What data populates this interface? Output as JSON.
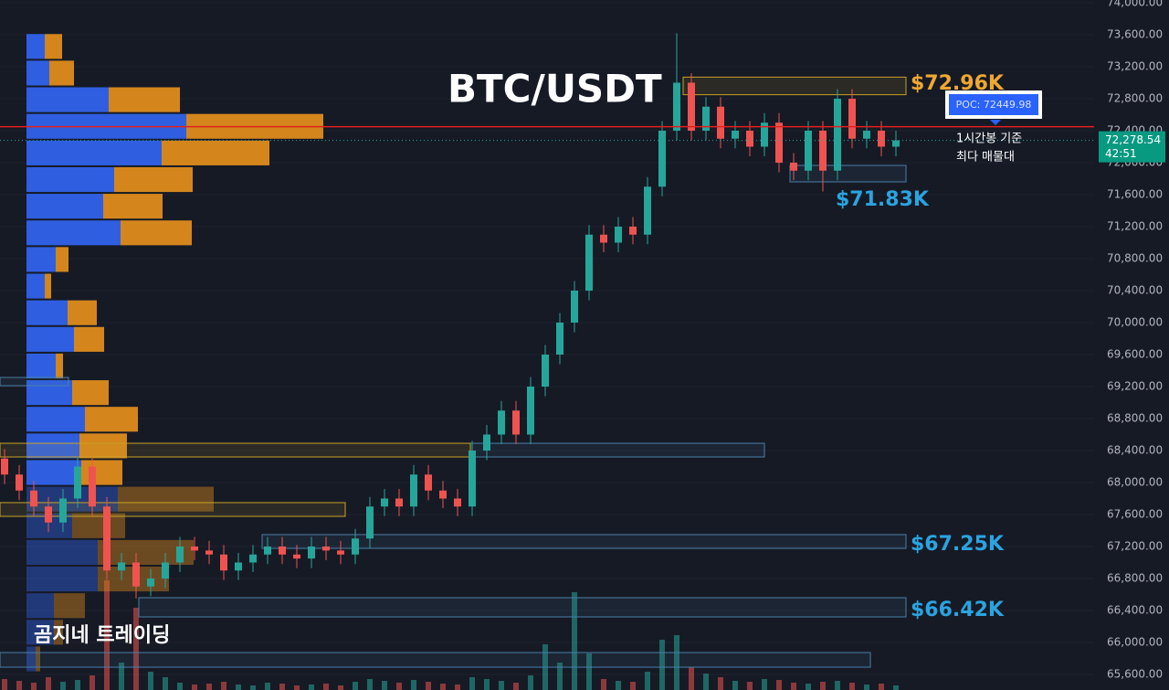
{
  "chart_data": {
    "type": "candlestick",
    "title": "BTC/USDT",
    "watermark": "곰지네 트레이딩",
    "note": [
      "1시간봉 기준",
      "최다 매물대"
    ],
    "timer": "42:51",
    "ylim": [
      65600,
      74000
    ],
    "yticks": [
      {
        "value": 74000,
        "label": "74,000.00"
      },
      {
        "value": 73600,
        "label": "73,600.00"
      },
      {
        "value": 73200,
        "label": "73,200.00"
      },
      {
        "value": 72800,
        "label": "72,800.00"
      },
      {
        "value": 72400,
        "label": "72,400.00"
      },
      {
        "value": 72000,
        "label": "72,000.00"
      },
      {
        "value": 71600,
        "label": "71,600.00"
      },
      {
        "value": 71200,
        "label": "71,200.00"
      },
      {
        "value": 70800,
        "label": "70,800.00"
      },
      {
        "value": 70400,
        "label": "70,400.00"
      },
      {
        "value": 70000,
        "label": "70,000.00"
      },
      {
        "value": 69600,
        "label": "69,600.00"
      },
      {
        "value": 69200,
        "label": "69,200.00"
      },
      {
        "value": 68800,
        "label": "68,800.00"
      },
      {
        "value": 68400,
        "label": "68,400.00"
      },
      {
        "value": 68000,
        "label": "68,000.00"
      },
      {
        "value": 67600,
        "label": "67,600.00"
      },
      {
        "value": 67200,
        "label": "67,200.00"
      },
      {
        "value": 66800,
        "label": "66,800.00"
      },
      {
        "value": 66400,
        "label": "66,400.00"
      },
      {
        "value": 66000,
        "label": "66,000.00"
      },
      {
        "value": 65600,
        "label": "65,600.00"
      }
    ],
    "grid": true,
    "up_color": "#26a69a",
    "down_color": "#ef5350",
    "open": [
      68300,
      68100,
      67900,
      67700,
      67500,
      67800,
      68200,
      67700,
      66900,
      67000,
      66700,
      66800,
      67000,
      67200,
      67150,
      67100,
      66900,
      67000,
      67100,
      67200,
      67100,
      67050,
      67200,
      67150,
      67100,
      67300,
      67700,
      67800,
      67700,
      68100,
      67900,
      67800,
      67700,
      68400,
      68600,
      68900,
      68600,
      69200,
      69600,
      70000,
      70400,
      71100,
      71000,
      71200,
      71100,
      71700,
      72400,
      73000,
      72400,
      72700,
      72300,
      72400,
      72200,
      72500,
      72000,
      71900,
      72400,
      71900,
      72800,
      72300,
      72400,
      72200
    ],
    "high": [
      68420,
      68220,
      68020,
      67820,
      67920,
      68320,
      68320,
      67820,
      67120,
      67120,
      66920,
      67120,
      67320,
      67320,
      67270,
      67220,
      67120,
      67220,
      67320,
      67320,
      67220,
      67320,
      67320,
      67270,
      67420,
      67820,
      67920,
      67920,
      68220,
      68220,
      68020,
      67920,
      68520,
      68720,
      69020,
      69020,
      69320,
      69720,
      70120,
      70520,
      71220,
      71220,
      71320,
      71320,
      71820,
      72520,
      73620,
      73120,
      72820,
      72820,
      72520,
      72520,
      72620,
      72620,
      72120,
      72520,
      72520,
      72920,
      72920,
      72520,
      72520,
      72400
    ],
    "low": [
      67980,
      67780,
      67580,
      67380,
      67380,
      67680,
      67580,
      66780,
      66780,
      66550,
      66580,
      66680,
      66880,
      67030,
      66980,
      66780,
      66780,
      66880,
      66980,
      66980,
      66930,
      66930,
      67030,
      66980,
      66980,
      67180,
      67580,
      67580,
      67580,
      67780,
      67680,
      67580,
      67580,
      68280,
      68480,
      68480,
      68480,
      69080,
      69480,
      69880,
      70280,
      70880,
      70880,
      70980,
      70980,
      71580,
      72280,
      72280,
      72280,
      72180,
      72180,
      72080,
      72080,
      71880,
      71780,
      71780,
      71640,
      71780,
      72180,
      72180,
      72080,
      72080
    ],
    "close": [
      68100,
      67900,
      67700,
      67500,
      67800,
      68200,
      67700,
      66900,
      67000,
      66700,
      66800,
      67000,
      67200,
      67150,
      67100,
      66900,
      67000,
      67100,
      67200,
      67100,
      67050,
      67200,
      67150,
      67100,
      67300,
      67700,
      67800,
      67700,
      68100,
      67900,
      67800,
      67700,
      68400,
      68600,
      68900,
      68600,
      69200,
      69600,
      70000,
      70400,
      71100,
      71000,
      71200,
      71100,
      71700,
      72400,
      73000,
      72400,
      72700,
      72300,
      72400,
      72200,
      72500,
      72000,
      71900,
      72400,
      71900,
      72800,
      72300,
      72400,
      72200,
      72278.54
    ],
    "volume": [
      12,
      10,
      8,
      14,
      9,
      11,
      16,
      120,
      30,
      90,
      20,
      14,
      8,
      6,
      7,
      9,
      6,
      5,
      8,
      7,
      5,
      6,
      7,
      5,
      9,
      12,
      10,
      8,
      11,
      9,
      7,
      6,
      14,
      12,
      10,
      8,
      16,
      50,
      30,
      107,
      40,
      12,
      10,
      9,
      20,
      55,
      60,
      25,
      18,
      14,
      10,
      9,
      12,
      11,
      8,
      7,
      9,
      10,
      8,
      6,
      7,
      5
    ],
    "poc": {
      "value": 72449.98,
      "label": "POC: 72449.98"
    },
    "last_price": {
      "value": 72278.54,
      "label": "72,278.54"
    },
    "profile": {
      "bins": [
        73620,
        73287,
        72954,
        72621,
        72288,
        71955,
        71622,
        71289,
        70956,
        70623,
        70290,
        69957,
        69624,
        69291,
        68958,
        68625,
        68292,
        67959,
        67626,
        67293,
        66960,
        66627,
        66294,
        65961,
        65628
      ],
      "buy": [
        20,
        25,
        90,
        175,
        148,
        96,
        84,
        103,
        32,
        20,
        45,
        52,
        32,
        50,
        64,
        58,
        60,
        100,
        50,
        78,
        78,
        30,
        30,
        10
      ],
      "sell": [
        19,
        27,
        78,
        150,
        118,
        86,
        65,
        78,
        14,
        7,
        32,
        33,
        8,
        40,
        58,
        52,
        45,
        105,
        58,
        105,
        78,
        34,
        10,
        5
      ],
      "buy_color": "#2f5fe0",
      "sell_color": "#d4861c"
    },
    "zones": [
      {
        "low": 72850,
        "high": 73070,
        "color": "#c9a227",
        "label": {
          "value": 72960,
          "label": "$72.96K"
        }
      },
      {
        "low": 71760,
        "high": 71966,
        "color": "#4a7fa8",
        "label": {
          "value": 71830,
          "label": "$71.83K"
        }
      },
      {
        "low": 68320,
        "high": 68491,
        "color": "#4a7fa8"
      },
      {
        "low": 68320,
        "high": 68491,
        "color": "#c9a227"
      },
      {
        "low": 67577,
        "high": 67749,
        "color": "#c9a227"
      },
      {
        "low": 67177,
        "high": 67349,
        "color": "#4a7fa8",
        "label": {
          "value": 67250,
          "label": "$67.25K"
        }
      },
      {
        "low": 66320,
        "high": 66560,
        "color": "#4a7fa8",
        "label": {
          "value": 66420,
          "label": "$66.42K"
        }
      },
      {
        "low": 65691,
        "high": 65874,
        "color": "#4a7fa8"
      },
      {
        "low": 69211,
        "high": 69314,
        "color": "#4a7fa8"
      }
    ]
  }
}
